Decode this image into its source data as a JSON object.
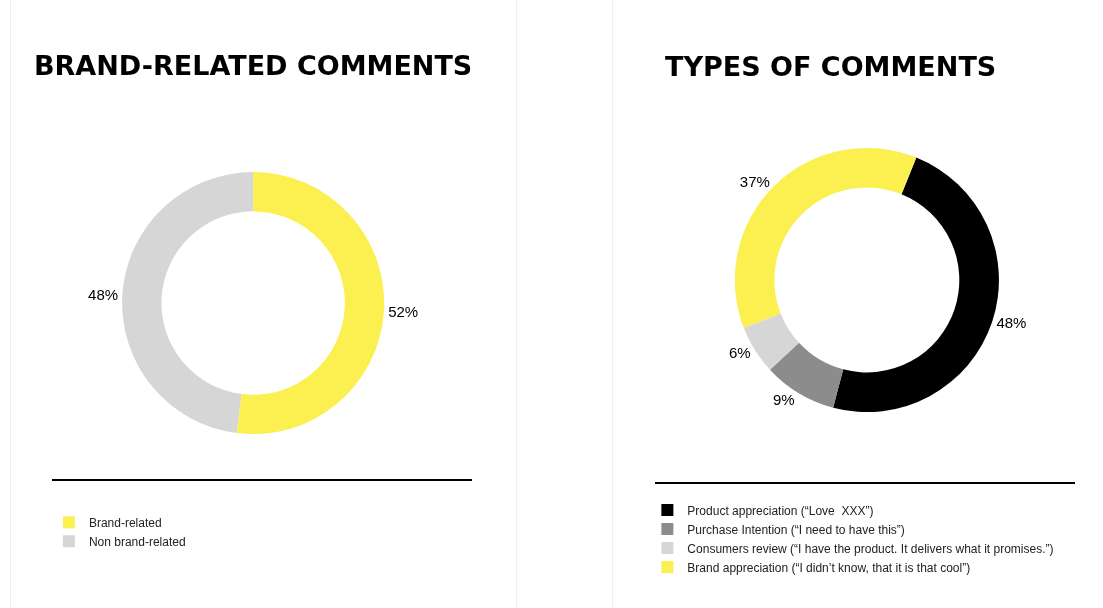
{
  "chart_data": [
    {
      "type": "donut",
      "title": "BRAND-RELATED COMMENTS",
      "categories": [
        "Brand-related",
        "Non brand-related"
      ],
      "values": [
        52,
        48
      ],
      "colors": [
        "#fcf050",
        "#d6d6d6"
      ],
      "value_labels": [
        "52%",
        "48%"
      ],
      "legend": "bottom left"
    },
    {
      "type": "donut",
      "title": "TYPES OF COMMENTS",
      "categories": [
        "Product appreciation (“Love  XXX”)",
        "Purchase Intention (“I need to have this”)",
        "Consumers review (“I have the product. It delivers what it promises.”)",
        "Brand appreciation (“I didn’t know, that it is that cool”)"
      ],
      "values": [
        48,
        9,
        6,
        37
      ],
      "colors": [
        "#000000",
        "#8c8c8c",
        "#d6d6d6",
        "#fcf050"
      ],
      "value_labels": [
        "48%",
        "9%",
        "6%",
        "37%"
      ],
      "legend": "bottom left"
    }
  ]
}
